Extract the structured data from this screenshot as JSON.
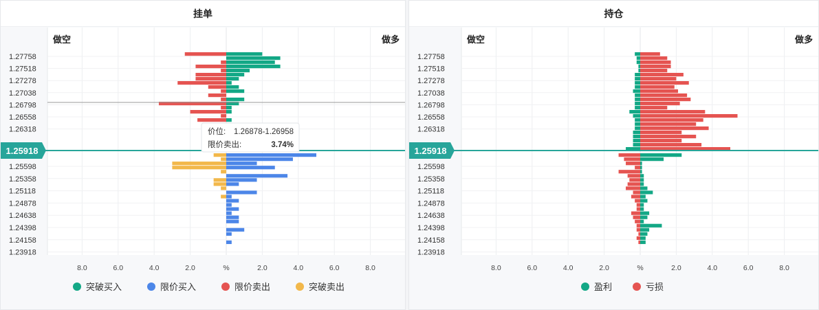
{
  "colors": {
    "breakout_buy": "#13a886",
    "limit_buy": "#4c86e8",
    "limit_sell": "#e55451",
    "breakout_sell": "#f2b84b",
    "profit": "#13a886",
    "loss": "#e55451",
    "current_price_bg": "#27a59a"
  },
  "left_panel": {
    "title": "挂单",
    "short_label": "做空",
    "long_label": "做多",
    "current_price": "1.25918",
    "tooltip": {
      "price_label": "价位:",
      "price_value": "1.26878-1.26958",
      "type_label": "限价卖出:",
      "type_value": "3.74%"
    },
    "legend": [
      "突破买入",
      "限价买入",
      "限价卖出",
      "突破卖出"
    ]
  },
  "right_panel": {
    "title": "持仓",
    "short_label": "做空",
    "long_label": "做多",
    "current_price": "1.25918",
    "legend": [
      "盈利",
      "亏损"
    ]
  },
  "chart_data": [
    {
      "type": "bar",
      "orientation": "horizontal",
      "title": "挂单",
      "xlabel": "%",
      "x_ticks": [
        "8.0",
        "6.0",
        "4.0",
        "2.0",
        "%",
        "2.0",
        "4.0",
        "6.0",
        "8.0"
      ],
      "xlim": [
        -8.0,
        8.0
      ],
      "y_tick_labels": [
        "1.27758",
        "1.27518",
        "1.27278",
        "1.27038",
        "1.26798",
        "1.26558",
        "1.26318",
        "1.25918",
        "1.25598",
        "1.25358",
        "1.25118",
        "1.24878",
        "1.24638",
        "1.24398",
        "1.24158",
        "1.23918"
      ],
      "upper_rows": 24,
      "lower_rows": 22,
      "series": [
        {
          "name": "突破买入",
          "side": "long",
          "values": [
            2.0,
            3.0,
            2.7,
            3.0,
            1.3,
            1.0,
            0.7,
            0.3,
            0.7,
            1.0,
            0,
            1.0,
            0.7,
            0.3,
            0.3,
            0,
            0.3,
            0,
            0.3,
            0,
            0,
            0,
            0,
            0
          ]
        },
        {
          "name": "限价卖出",
          "side": "short",
          "values": [
            2.3,
            0,
            0.3,
            1.7,
            0.3,
            1.7,
            1.7,
            2.7,
            1.0,
            0.3,
            1.0,
            0.3,
            3.74,
            0.3,
            2.0,
            0.3,
            1.6,
            0,
            0,
            0,
            0,
            0,
            0,
            0
          ]
        },
        {
          "name": "限价买入",
          "side": "long",
          "values": [
            5.0,
            3.7,
            1.7,
            2.7,
            0,
            3.4,
            1.7,
            0.7,
            0,
            1.7,
            0.3,
            0.7,
            0.3,
            0.7,
            0.3,
            0.7,
            0.7,
            0,
            1.0,
            0.3,
            0,
            0.3
          ]
        },
        {
          "name": "突破卖出",
          "side": "short",
          "values": [
            0.7,
            0.3,
            3.0,
            3.0,
            0.3,
            0,
            0.7,
            0.7,
            0.3,
            0,
            0.3,
            0,
            0,
            0,
            0,
            0,
            0,
            0,
            0,
            0,
            0,
            0
          ]
        }
      ]
    },
    {
      "type": "bar",
      "orientation": "horizontal",
      "title": "持仓",
      "xlabel": "%",
      "x_ticks": [
        "8.0",
        "6.0",
        "4.0",
        "2.0",
        "%",
        "2.0",
        "4.0",
        "6.0",
        "8.0"
      ],
      "xlim": [
        -8.0,
        8.0
      ],
      "y_tick_labels": [
        "1.27758",
        "1.27518",
        "1.27278",
        "1.27038",
        "1.26798",
        "1.26558",
        "1.26318",
        "1.25918",
        "1.25598",
        "1.25358",
        "1.25118",
        "1.24878",
        "1.24638",
        "1.24398",
        "1.24158",
        "1.23918"
      ],
      "upper_rows": 24,
      "lower_rows": 22,
      "series": [
        {
          "name": "盈利",
          "part": "upper",
          "side": "short",
          "values": [
            0.3,
            0.2,
            0.2,
            0.1,
            0.1,
            0.3,
            0.3,
            0.3,
            0.3,
            0.4,
            0.3,
            0.3,
            0.3,
            0.3,
            0.6,
            0.4,
            0.3,
            0.3,
            0.3,
            0.4,
            0.4,
            0.4,
            0.4,
            0.8
          ]
        },
        {
          "name": "亏损",
          "part": "upper",
          "side": "long",
          "values": [
            1.1,
            1.5,
            1.7,
            1.7,
            1.5,
            2.4,
            2.0,
            2.7,
            1.9,
            2.1,
            2.6,
            2.8,
            2.2,
            1.5,
            3.6,
            5.4,
            3.5,
            3.1,
            3.8,
            2.3,
            3.1,
            2.3,
            3.4,
            5.0
          ]
        },
        {
          "name": "盈利",
          "part": "lower",
          "side": "long",
          "values": [
            2.3,
            1.3,
            0.1,
            0.1,
            0.1,
            0.2,
            0.2,
            0.2,
            0.4,
            0.7,
            0.3,
            0.4,
            0.2,
            0.2,
            0.5,
            0.4,
            0.2,
            1.2,
            0.5,
            0.4,
            0.3,
            0.3
          ]
        },
        {
          "name": "亏损",
          "part": "lower",
          "side": "short",
          "values": [
            1.2,
            0.9,
            0.8,
            0.3,
            1.2,
            0.7,
            0.6,
            0.7,
            0.8,
            0.4,
            0.5,
            0.3,
            0.2,
            0.2,
            0.5,
            0.4,
            0.3,
            0.2,
            0.2,
            0.1,
            0.2,
            0.1
          ]
        }
      ]
    }
  ]
}
